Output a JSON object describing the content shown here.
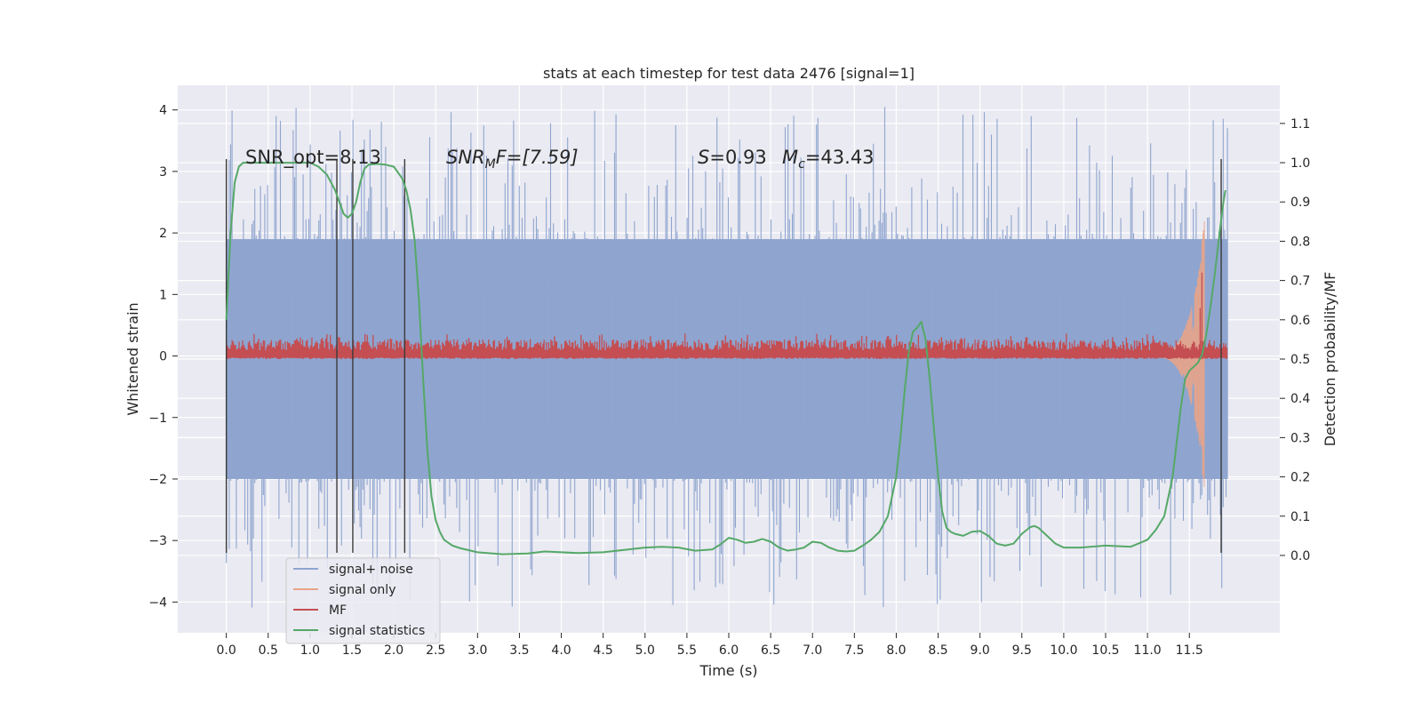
{
  "chart_data": {
    "type": "line",
    "title": "stats at each timestep for test data 2476 [signal=1]",
    "xlabel": "Time (s)",
    "ylabel_left": "Whitened strain",
    "ylabel_right": "Detection probability/MF",
    "xlim": [
      -0.58,
      12.58
    ],
    "ylim_left": [
      -4.5,
      4.4
    ],
    "ylim_right": [
      -0.197,
      1.197
    ],
    "x_ticks": [
      0.0,
      0.5,
      1.0,
      1.5,
      2.0,
      2.5,
      3.0,
      3.5,
      4.0,
      4.5,
      5.0,
      5.5,
      6.0,
      6.5,
      7.0,
      7.5,
      8.0,
      8.5,
      9.0,
      9.5,
      10.0,
      10.5,
      11.0,
      11.5
    ],
    "x_tick_labels": [
      "0.0",
      "0.5",
      "1.0",
      "1.5",
      "2.0",
      "2.5",
      "3.0",
      "3.5",
      "4.0",
      "4.5",
      "5.0",
      "5.5",
      "6.0",
      "6.5",
      "7.0",
      "7.5",
      "8.0",
      "8.5",
      "9.0",
      "9.5",
      "10.0",
      "10.5",
      "11.0",
      "11.5"
    ],
    "y_left_ticks": [
      -4,
      -3,
      -2,
      -1,
      0,
      1,
      2,
      3,
      4
    ],
    "y_left_tick_labels": [
      "−4",
      "−3",
      "−2",
      "−1",
      "0",
      "1",
      "2",
      "3",
      "4"
    ],
    "y_right_ticks": [
      0.0,
      0.1,
      0.2,
      0.3,
      0.4,
      0.5,
      0.6,
      0.7,
      0.8,
      0.9,
      1.0,
      1.1
    ],
    "y_right_tick_labels": [
      "0.0",
      "0.1",
      "0.2",
      "0.3",
      "0.4",
      "0.5",
      "0.6",
      "0.7",
      "0.8",
      "0.9",
      "1.0",
      "1.1"
    ],
    "grid": true,
    "legend_placement": "lower-left",
    "annotations": [
      {
        "text": "SNR_opt=8.13",
        "x": 0.2,
        "y_right": 0.998
      },
      {
        "text": "SNR_MF=[7.59]",
        "x": 2.6,
        "y_right": 0.998
      },
      {
        "text": "S=0.93",
        "x": 5.6,
        "y_right": 0.998
      },
      {
        "text": "M_c=43.43",
        "x": 6.6,
        "y_right": 0.998
      }
    ],
    "annotation_parts": {
      "snr_opt": "SNR_opt=8.13",
      "snr_mf_main": "SNR",
      "snr_mf_sub": "M",
      "snr_mf_rest": "F=[7.59]",
      "s_var": "S",
      "s_rest": "=0.93",
      "mc_var": "M",
      "mc_sub": "c",
      "mc_rest": "=43.43"
    },
    "vertical_lines_x": [
      0.0,
      1.32,
      1.51,
      2.13,
      11.88
    ],
    "vertical_lines_yrange_left": [
      -3.2,
      3.2
    ],
    "series": [
      {
        "name": "signal+ noise",
        "color": "#8fa5cf",
        "kind": "noise",
        "x_range": [
          0.0,
          11.96
        ],
        "envelope_left": [
          -2.0,
          1.9
        ],
        "spikes_left": [
          -4.1,
          4.05
        ]
      },
      {
        "name": "signal only",
        "color": "#e8a488",
        "kind": "chirp",
        "x_range": [
          11.0,
          11.68
        ],
        "peak_left": 2.2,
        "trough_left": -2.0
      },
      {
        "name": "MF",
        "color": "#c44e52",
        "kind": "band",
        "x_range": [
          0.0,
          11.96
        ],
        "range_right": [
          0.5,
          0.55
        ],
        "peak": {
          "x": 11.65,
          "y_right": 0.72
        }
      },
      {
        "name": "signal statistics",
        "color": "#55a868",
        "kind": "line",
        "x": [
          0.0,
          0.05,
          0.1,
          0.15,
          0.2,
          0.3,
          0.5,
          0.8,
          1.0,
          1.1,
          1.2,
          1.3,
          1.4,
          1.45,
          1.5,
          1.55,
          1.6,
          1.65,
          1.7,
          1.8,
          1.9,
          2.0,
          2.1,
          2.15,
          2.2,
          2.25,
          2.3,
          2.35,
          2.4,
          2.45,
          2.5,
          2.55,
          2.6,
          2.7,
          2.8,
          3.0,
          3.3,
          3.6,
          3.8,
          4.0,
          4.2,
          4.5,
          4.8,
          5.0,
          5.2,
          5.4,
          5.6,
          5.8,
          5.9,
          6.0,
          6.1,
          6.2,
          6.3,
          6.4,
          6.5,
          6.6,
          6.7,
          6.8,
          6.9,
          7.0,
          7.1,
          7.2,
          7.3,
          7.4,
          7.5,
          7.6,
          7.7,
          7.8,
          7.9,
          8.0,
          8.05,
          8.1,
          8.15,
          8.2,
          8.25,
          8.3,
          8.35,
          8.4,
          8.45,
          8.5,
          8.55,
          8.6,
          8.65,
          8.7,
          8.8,
          8.9,
          9.0,
          9.1,
          9.2,
          9.3,
          9.4,
          9.5,
          9.6,
          9.65,
          9.7,
          9.8,
          9.9,
          10.0,
          10.2,
          10.5,
          10.8,
          11.0,
          11.1,
          11.2,
          11.3,
          11.35,
          11.4,
          11.45,
          11.5,
          11.55,
          11.6,
          11.65,
          11.7,
          11.75,
          11.8,
          11.85,
          11.9,
          11.93
        ],
        "y": [
          0.6,
          0.82,
          0.95,
          0.99,
          1.0,
          1.0,
          1.0,
          1.0,
          1.0,
          0.99,
          0.97,
          0.93,
          0.87,
          0.86,
          0.87,
          0.9,
          0.95,
          0.985,
          0.995,
          0.997,
          0.995,
          0.99,
          0.96,
          0.93,
          0.88,
          0.8,
          0.65,
          0.45,
          0.27,
          0.15,
          0.09,
          0.06,
          0.04,
          0.025,
          0.018,
          0.008,
          0.003,
          0.005,
          0.01,
          0.008,
          0.006,
          0.008,
          0.015,
          0.02,
          0.022,
          0.02,
          0.012,
          0.015,
          0.028,
          0.045,
          0.04,
          0.032,
          0.035,
          0.042,
          0.035,
          0.02,
          0.012,
          0.015,
          0.02,
          0.035,
          0.032,
          0.02,
          0.012,
          0.01,
          0.012,
          0.025,
          0.04,
          0.06,
          0.1,
          0.2,
          0.3,
          0.42,
          0.52,
          0.57,
          0.58,
          0.595,
          0.55,
          0.45,
          0.32,
          0.2,
          0.11,
          0.07,
          0.06,
          0.055,
          0.05,
          0.06,
          0.062,
          0.05,
          0.03,
          0.025,
          0.03,
          0.055,
          0.072,
          0.075,
          0.07,
          0.05,
          0.03,
          0.02,
          0.02,
          0.025,
          0.022,
          0.04,
          0.065,
          0.1,
          0.2,
          0.29,
          0.38,
          0.45,
          0.47,
          0.48,
          0.49,
          0.51,
          0.56,
          0.63,
          0.71,
          0.8,
          0.89,
          0.93
        ]
      }
    ]
  }
}
